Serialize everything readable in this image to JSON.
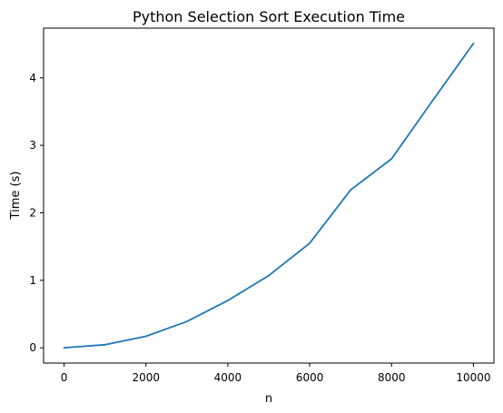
{
  "chart_data": {
    "type": "line",
    "title": "Python Selection Sort Execution Time",
    "xlabel": "n",
    "ylabel": "Time (s)",
    "xlim": [
      -500,
      10500
    ],
    "ylim": [
      -0.2265,
      4.7365
    ],
    "xticks": [
      0,
      2000,
      4000,
      6000,
      8000,
      10000
    ],
    "yticks": [
      0,
      1,
      2,
      3,
      4
    ],
    "grid": false,
    "line_color": "#1f77b4",
    "series": [
      {
        "x": [
          0,
          1000,
          2000,
          3000,
          4000,
          5000,
          6000,
          7000,
          8000,
          9000,
          10000
        ],
        "values": [
          0.0,
          0.045,
          0.17,
          0.39,
          0.7,
          1.07,
          1.55,
          2.34,
          2.8,
          3.66,
          4.51
        ]
      }
    ]
  }
}
